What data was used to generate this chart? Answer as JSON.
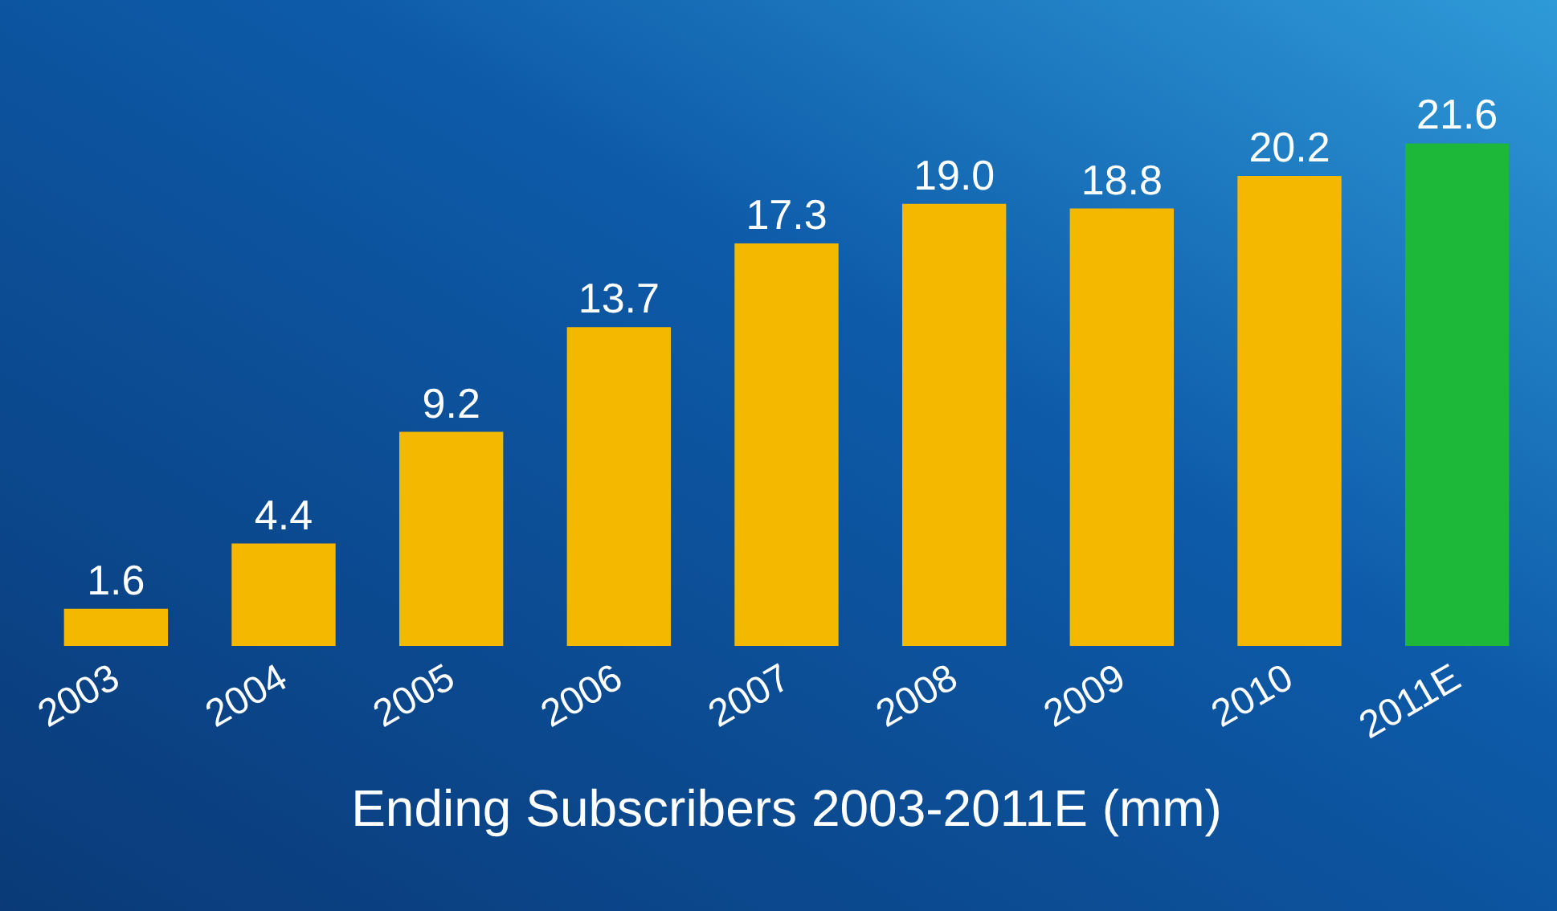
{
  "chart_data": {
    "type": "bar",
    "xlabel": "Ending Subscribers 2003-2011E (mm)",
    "categories": [
      "2003",
      "2004",
      "2005",
      "2006",
      "2007",
      "2008",
      "2009",
      "2010",
      "2011E"
    ],
    "values": [
      1.6,
      4.4,
      9.2,
      13.7,
      17.3,
      19.0,
      18.8,
      20.2,
      21.6
    ],
    "colors": [
      "#f5b800",
      "#f5b800",
      "#f5b800",
      "#f5b800",
      "#f5b800",
      "#f5b800",
      "#f5b800",
      "#f5b800",
      "#1db83a"
    ],
    "value_labels": [
      "1.6",
      "4.4",
      "9.2",
      "13.7",
      "17.3",
      "19.0",
      "18.8",
      "20.2",
      "21.6"
    ]
  }
}
